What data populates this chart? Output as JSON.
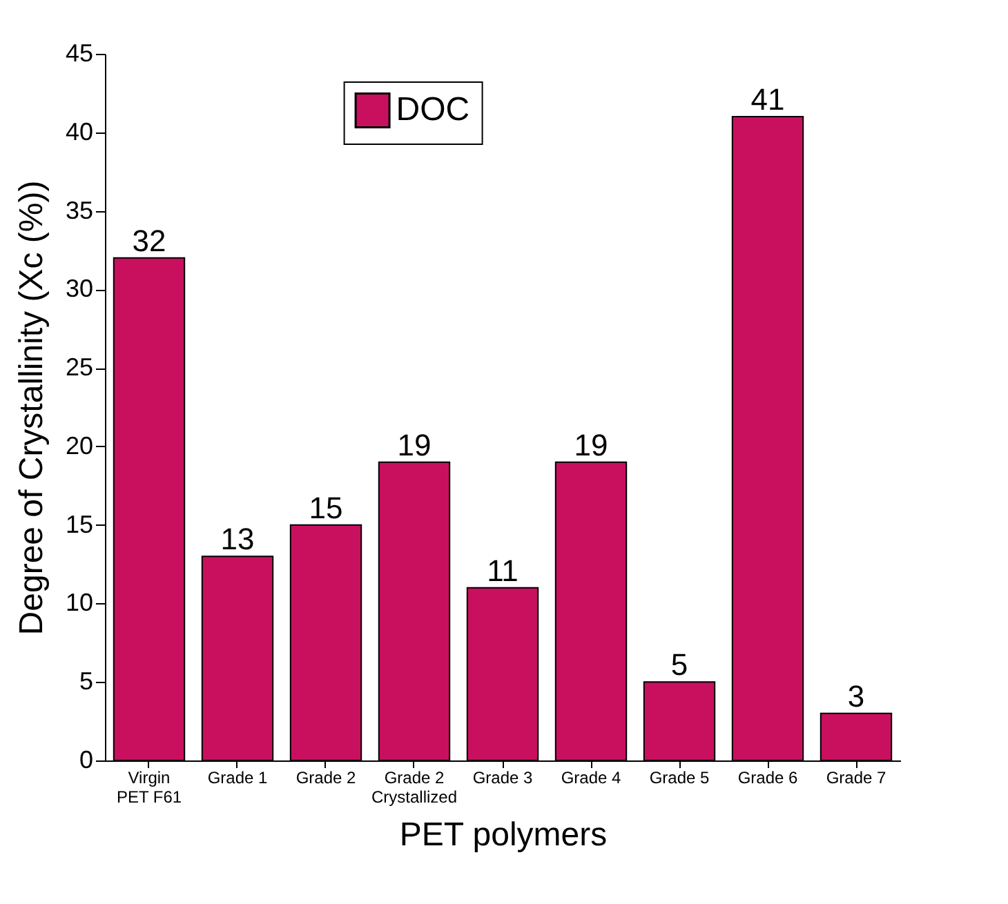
{
  "chart_data": {
    "type": "bar",
    "xlabel": "PET polymers",
    "ylabel": "Degree of Crystallinity (Xc (%))",
    "categories": [
      "Virgin\nPET F61",
      "Grade 1",
      "Grade 2",
      "Grade 2\nCrystallized",
      "Grade 3",
      "Grade 4",
      "Grade 5",
      "Grade 6",
      "Grade 7"
    ],
    "series": [
      {
        "name": "DOC",
        "color": "#c8105f",
        "values": [
          32,
          13,
          15,
          19,
          11,
          19,
          5,
          41,
          3
        ]
      }
    ],
    "ylim": [
      0,
      45
    ],
    "yticks": [
      0,
      5,
      10,
      15,
      20,
      25,
      30,
      35,
      40,
      45
    ],
    "data_labels": true,
    "legend": "top",
    "grid": false
  }
}
